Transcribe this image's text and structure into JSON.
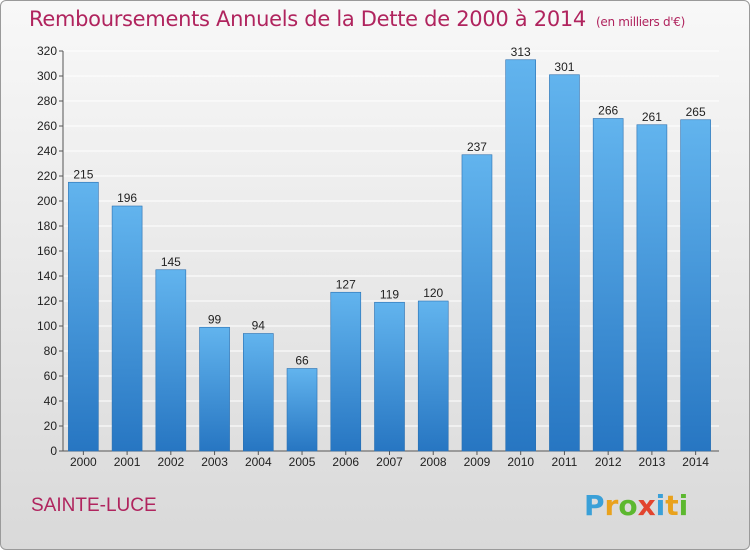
{
  "title": "Remboursements Annuels de la Dette de 2000 à 2014",
  "unit": "(en milliers d'€)",
  "commune": "SAINTE-LUCE",
  "logo": [
    "P",
    "r",
    "o",
    "x",
    "i",
    "t",
    "i"
  ],
  "colors": {
    "bar": "#4a9fe0",
    "bar_dark": "#2a78c4",
    "title": "#b0245e",
    "grid": "#ffffff"
  },
  "chart_data": {
    "type": "bar",
    "title": "Remboursements Annuels de la Dette de 2000 à 2014",
    "ylabel": "",
    "xlabel": "",
    "ylim": [
      0,
      320
    ],
    "yticks": [
      0,
      20,
      40,
      60,
      80,
      100,
      120,
      140,
      160,
      180,
      200,
      220,
      240,
      260,
      280,
      300,
      320
    ],
    "grid": true,
    "categories": [
      "2000",
      "2001",
      "2002",
      "2003",
      "2004",
      "2005",
      "2006",
      "2007",
      "2008",
      "2009",
      "2010",
      "2011",
      "2012",
      "2013",
      "2014"
    ],
    "values": [
      215,
      196,
      145,
      99,
      94,
      66,
      127,
      119,
      120,
      237,
      313,
      301,
      266,
      261,
      265
    ]
  }
}
